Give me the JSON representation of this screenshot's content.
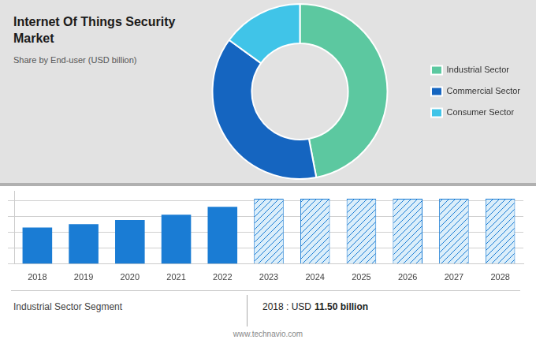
{
  "chart_data": [
    {
      "type": "pie",
      "title": "Internet Of Things Security\nMarket",
      "subtitle": "Share by End-user (USD billion)",
      "categories": [
        "Industrial Sector",
        "Commercial Sector",
        "Consumer Sector"
      ],
      "values": [
        47,
        38,
        15
      ],
      "colors": [
        "#5cc8a0",
        "#1565c0",
        "#40c4e8"
      ],
      "legend": "right"
    },
    {
      "type": "bar",
      "categories": [
        2018,
        2019,
        2020,
        2021,
        2022,
        2023,
        2024,
        2025,
        2026,
        2027,
        2028
      ],
      "values": [
        11.5,
        12.5,
        13.8,
        15.5,
        18.0,
        20.5,
        20.5,
        20.5,
        20.5,
        20.5,
        20.5
      ],
      "color": "#1a7cd4",
      "colors": [
        "#1a7cd4",
        "#1a7cd4",
        "#1a7cd4",
        "#1a7cd4",
        "#1a7cd4",
        "#dbeefa",
        "#dbeefa",
        "#dbeefa",
        "#dbeefa",
        "#dbeefa",
        "#dbeefa"
      ],
      "ylim": [
        0,
        23
      ],
      "yticks": [
        0,
        5,
        10,
        15,
        20
      ],
      "grid": true,
      "tick_labels": "x",
      "annotations": [
        "Industrial Sector Segment",
        "2018 : USD",
        "11.50 billion",
        "www.technavio.com"
      ]
    }
  ]
}
